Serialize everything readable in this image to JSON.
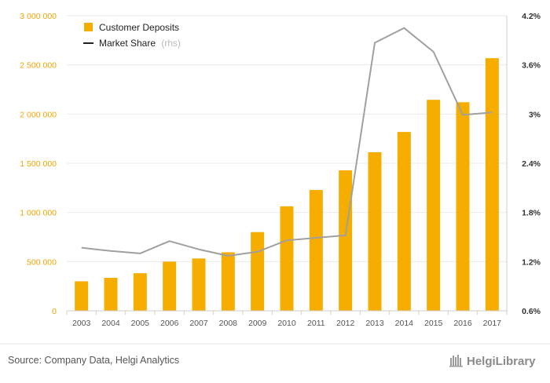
{
  "chart_data": {
    "type": "bar",
    "categories": [
      "2003",
      "2004",
      "2005",
      "2006",
      "2007",
      "2008",
      "2009",
      "2010",
      "2011",
      "2012",
      "2013",
      "2014",
      "2015",
      "2016",
      "2017"
    ],
    "series": [
      {
        "name": "Customer Deposits",
        "type": "bar",
        "axis": "left",
        "color": "#f5ad00",
        "values": [
          300000,
          335000,
          382000,
          500000,
          532000,
          595000,
          800000,
          1062000,
          1228000,
          1428000,
          1612000,
          1818000,
          2145000,
          2120000,
          2568000
        ]
      },
      {
        "name": "Market Share",
        "name_suffix": "(rhs)",
        "type": "line",
        "axis": "right",
        "color": "#a0a0a0",
        "values": [
          1.37,
          1.33,
          1.3,
          1.45,
          1.35,
          1.27,
          1.32,
          1.46,
          1.49,
          1.52,
          3.87,
          4.05,
          3.76,
          2.99,
          3.02
        ]
      }
    ],
    "ylim_left": [
      0,
      3000000
    ],
    "ylim_right": [
      0.6,
      4.2
    ],
    "yticks_left": [
      0,
      500000,
      1000000,
      1500000,
      2000000,
      2500000,
      3000000
    ],
    "yticks_left_labels": [
      "0",
      "500 000",
      "1 000 000",
      "1 500 000",
      "2 000 000",
      "2 500 000",
      "3 000 000"
    ],
    "yticks_right": [
      0.6,
      1.2,
      1.8,
      2.4,
      3.0,
      3.6,
      4.2
    ],
    "yticks_right_labels": [
      "0.6%",
      "1.2%",
      "1.8%",
      "2.4%",
      "3%",
      "3.6%",
      "4.2%"
    ],
    "grid": true,
    "legend_position": "top-left",
    "left_axis_color": "#f0a500"
  },
  "footer": {
    "source": "Source: Company Data, Helgi Analytics",
    "brand": "HelgiLibrary"
  }
}
